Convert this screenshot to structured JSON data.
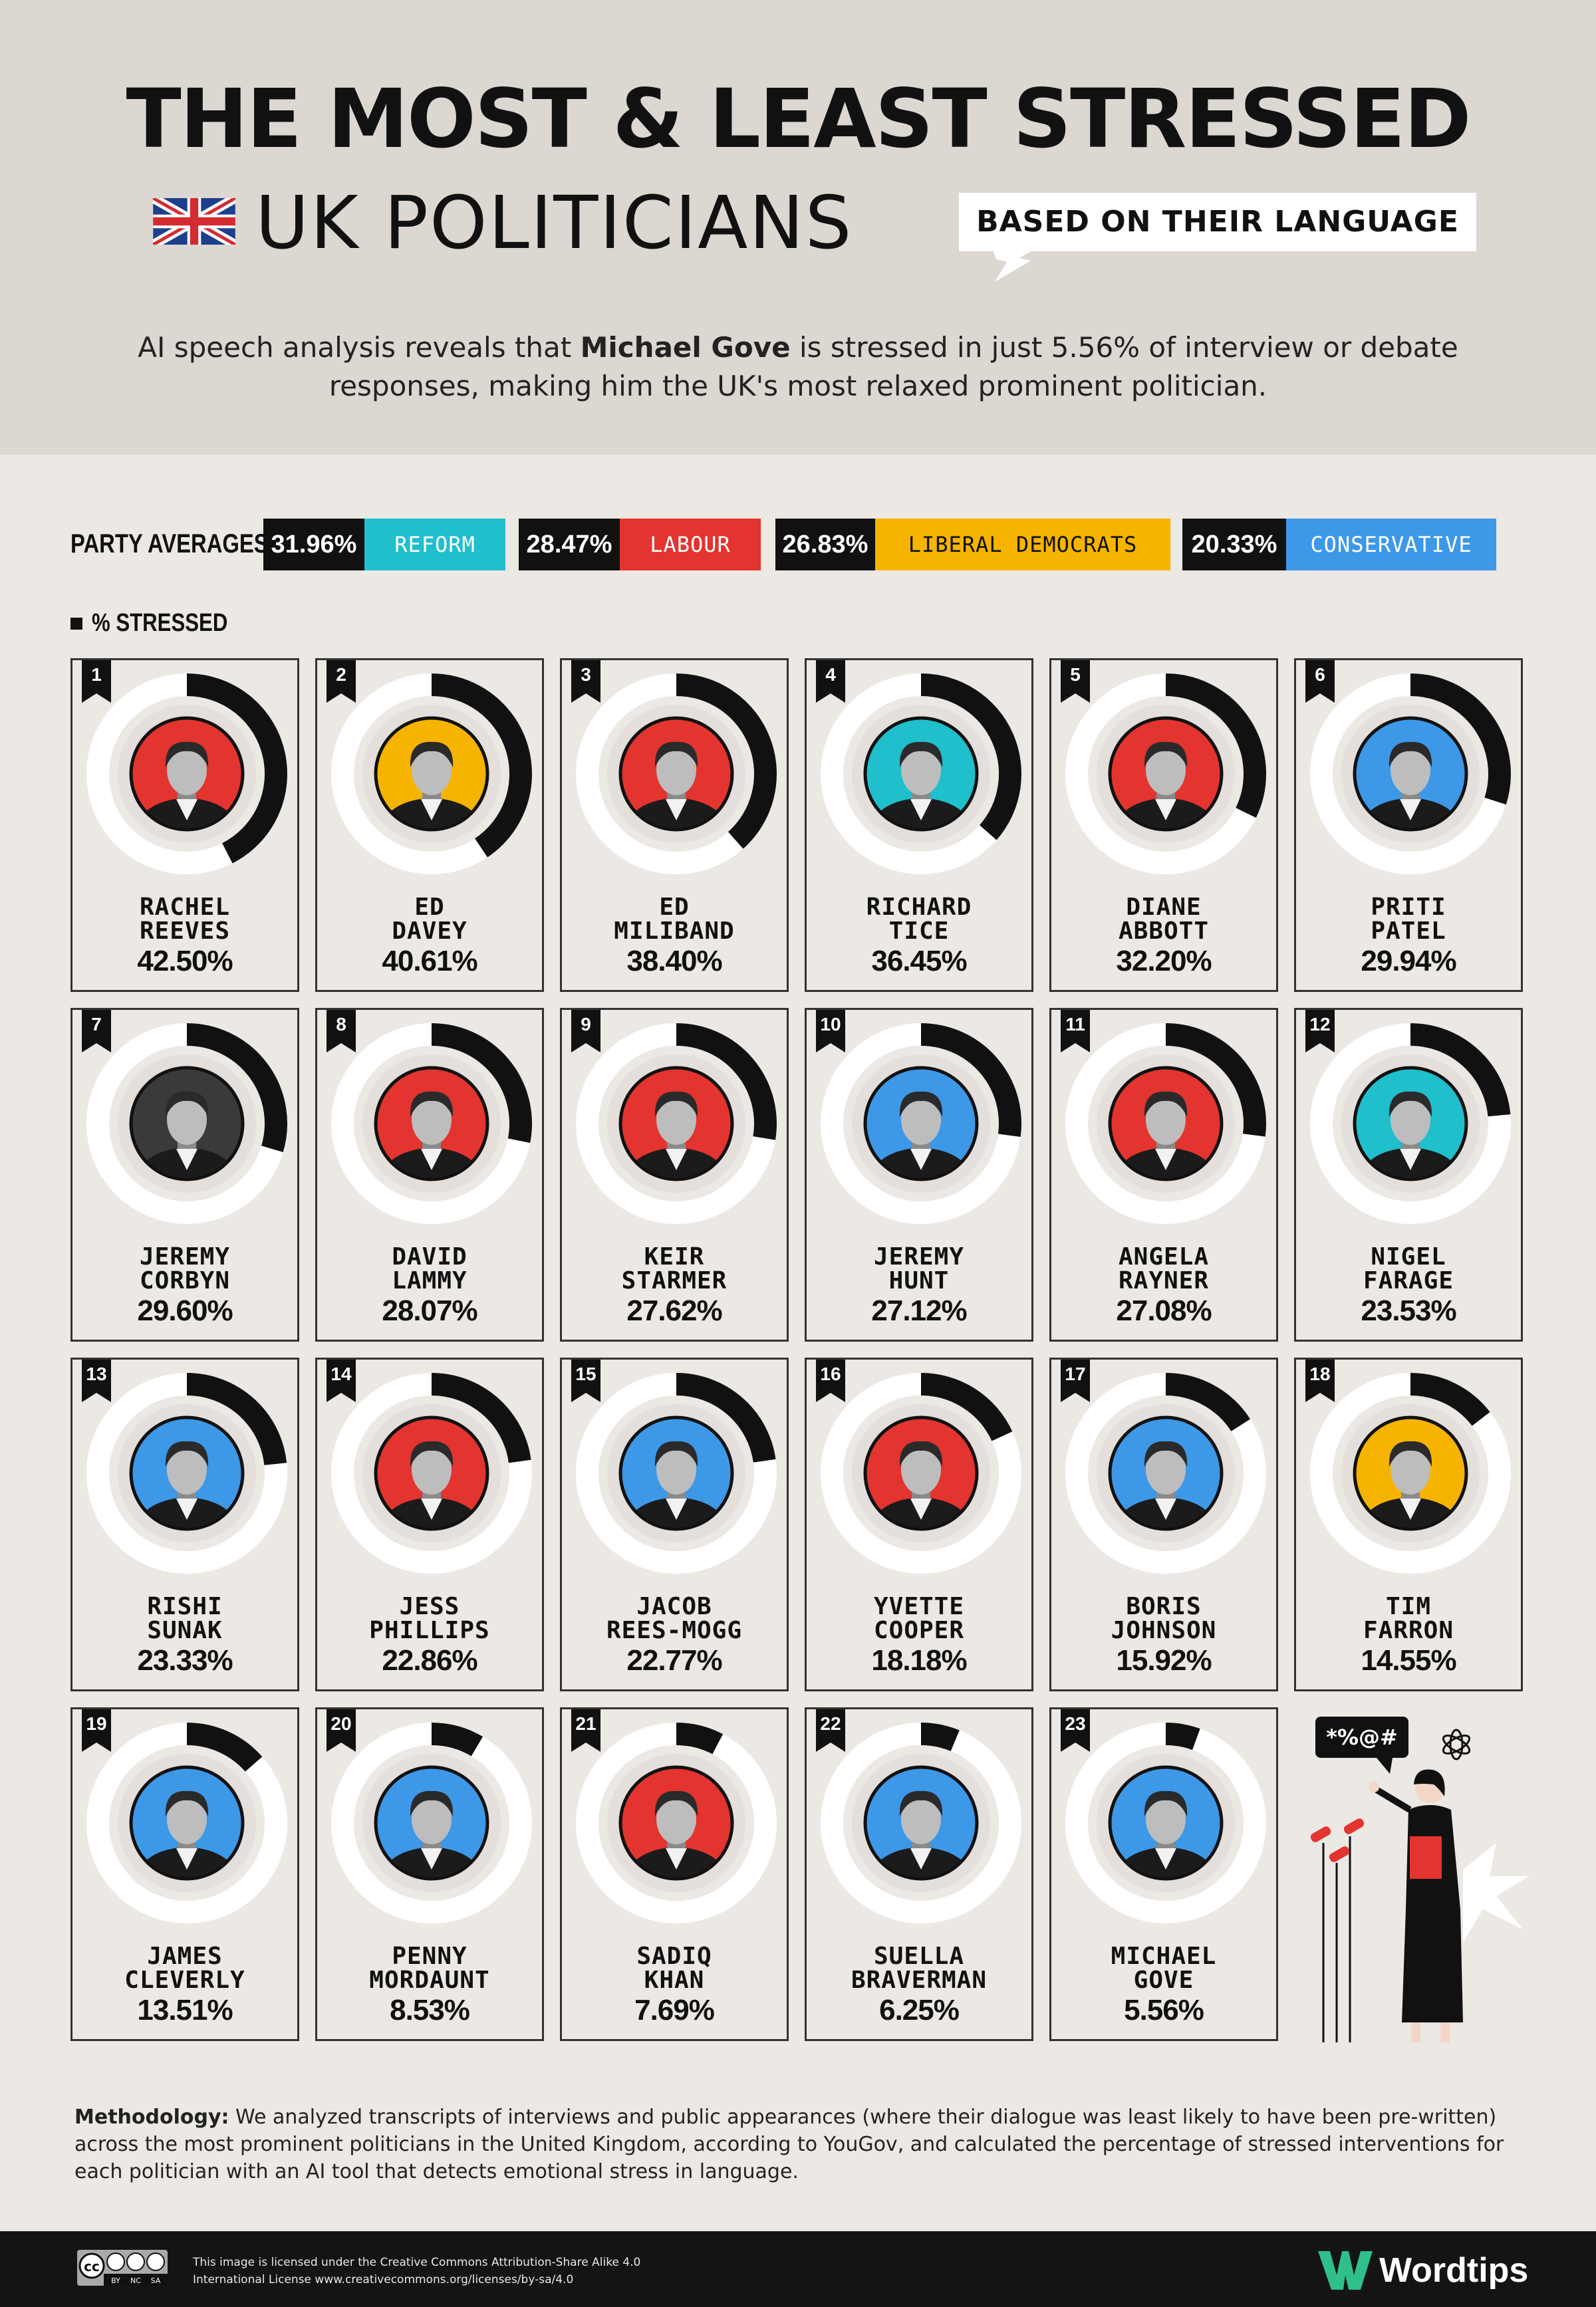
{
  "header": {
    "title_line1": "THE MOST & LEAST STRESSED",
    "title_line2": "UK POLITICIANS",
    "badge": "BASED ON THEIR LANGUAGE",
    "intro_before": "AI speech analysis reveals that ",
    "intro_bold": "Michael Gove",
    "intro_after": " is stressed in just 5.56% of interview or debate responses, making him the UK's most relaxed prominent politician."
  },
  "party_averages": {
    "label": "PARTY AVERAGES:",
    "items": [
      {
        "value": "31.96%",
        "name": "REFORM",
        "color": "#1fbfcc"
      },
      {
        "value": "28.47%",
        "name": "LABOUR",
        "color": "#e3342f"
      },
      {
        "value": "26.83%",
        "name": "LIBERAL DEMOCRATS",
        "color": "#f6b400"
      },
      {
        "value": "20.33%",
        "name": "CONSERVATIVE",
        "color": "#3d98e8"
      }
    ]
  },
  "legend": {
    "label": "% STRESSED"
  },
  "colors": {
    "reform": "#1fbfcc",
    "labour": "#e3342f",
    "libdem": "#f6b400",
    "conservative": "#3d98e8",
    "independent": "#3a3a3a"
  },
  "chart_data": {
    "type": "donut",
    "unit": "%",
    "series_label": "% STRESSED",
    "politicians": [
      {
        "rank": "1",
        "first": "RACHEL",
        "last": "REEVES",
        "value": 42.5,
        "label": "42.50%",
        "party": "labour"
      },
      {
        "rank": "2",
        "first": "ED",
        "last": "DAVEY",
        "value": 40.61,
        "label": "40.61%",
        "party": "libdem"
      },
      {
        "rank": "3",
        "first": "ED",
        "last": "MILIBAND",
        "value": 38.4,
        "label": "38.40%",
        "party": "labour"
      },
      {
        "rank": "4",
        "first": "RICHARD",
        "last": "TICE",
        "value": 36.45,
        "label": "36.45%",
        "party": "reform"
      },
      {
        "rank": "5",
        "first": "DIANE",
        "last": "ABBOTT",
        "value": 32.2,
        "label": "32.20%",
        "party": "labour"
      },
      {
        "rank": "6",
        "first": "PRITI",
        "last": "PATEL",
        "value": 29.94,
        "label": "29.94%",
        "party": "conservative"
      },
      {
        "rank": "7",
        "first": "JEREMY",
        "last": "CORBYN",
        "value": 29.6,
        "label": "29.60%",
        "party": "independent"
      },
      {
        "rank": "8",
        "first": "DAVID",
        "last": "LAMMY",
        "value": 28.07,
        "label": "28.07%",
        "party": "labour"
      },
      {
        "rank": "9",
        "first": "KEIR",
        "last": "STARMER",
        "value": 27.62,
        "label": "27.62%",
        "party": "labour"
      },
      {
        "rank": "10",
        "first": "JEREMY",
        "last": "HUNT",
        "value": 27.12,
        "label": "27.12%",
        "party": "conservative"
      },
      {
        "rank": "11",
        "first": "ANGELA",
        "last": "RAYNER",
        "value": 27.08,
        "label": "27.08%",
        "party": "labour"
      },
      {
        "rank": "12",
        "first": "NIGEL",
        "last": "FARAGE",
        "value": 23.53,
        "label": "23.53%",
        "party": "reform"
      },
      {
        "rank": "13",
        "first": "RISHI",
        "last": "SUNAK",
        "value": 23.33,
        "label": "23.33%",
        "party": "conservative"
      },
      {
        "rank": "14",
        "first": "JESS",
        "last": "PHILLIPS",
        "value": 22.86,
        "label": "22.86%",
        "party": "labour"
      },
      {
        "rank": "15",
        "first": "JACOB",
        "last": "REES-MOGG",
        "value": 22.77,
        "label": "22.77%",
        "party": "conservative"
      },
      {
        "rank": "16",
        "first": "YVETTE",
        "last": "COOPER",
        "value": 18.18,
        "label": "18.18%",
        "party": "labour"
      },
      {
        "rank": "17",
        "first": "BORIS",
        "last": "JOHNSON",
        "value": 15.92,
        "label": "15.92%",
        "party": "conservative"
      },
      {
        "rank": "18",
        "first": "TIM",
        "last": "FARRON",
        "value": 14.55,
        "label": "14.55%",
        "party": "libdem"
      },
      {
        "rank": "19",
        "first": "JAMES",
        "last": "CLEVERLY",
        "value": 13.51,
        "label": "13.51%",
        "party": "conservative"
      },
      {
        "rank": "20",
        "first": "PENNY",
        "last": "MORDAUNT",
        "value": 8.53,
        "label": "8.53%",
        "party": "conservative"
      },
      {
        "rank": "21",
        "first": "SADIQ",
        "last": "KHAN",
        "value": 7.69,
        "label": "7.69%",
        "party": "labour"
      },
      {
        "rank": "22",
        "first": "SUELLA",
        "last": "BRAVERMAN",
        "value": 6.25,
        "label": "6.25%",
        "party": "conservative"
      },
      {
        "rank": "23",
        "first": "MICHAEL",
        "last": "GOVE",
        "value": 5.56,
        "label": "5.56%",
        "party": "conservative"
      }
    ]
  },
  "methodology": {
    "label": "Methodology:",
    "text": " We analyzed transcripts of interviews and public appearances (where their dialogue was least likely to have been pre-written) across the most prominent politicians in the United Kingdom, according to YouGov, and calculated the percentage of stressed interventions for each politician with an AI tool that detects emotional stress in language."
  },
  "footer": {
    "license_line1": "This image is licensed under the Creative Commons Attribution-Share Alike 4.0",
    "license_line2": "International License www.creativecommons.org/licenses/by-sa/4.0",
    "brand": "Wordtips",
    "cc_badges": [
      "cc",
      "BY",
      "NC",
      "SA"
    ]
  },
  "illustration": {
    "speech_symbols": "*%@#"
  }
}
